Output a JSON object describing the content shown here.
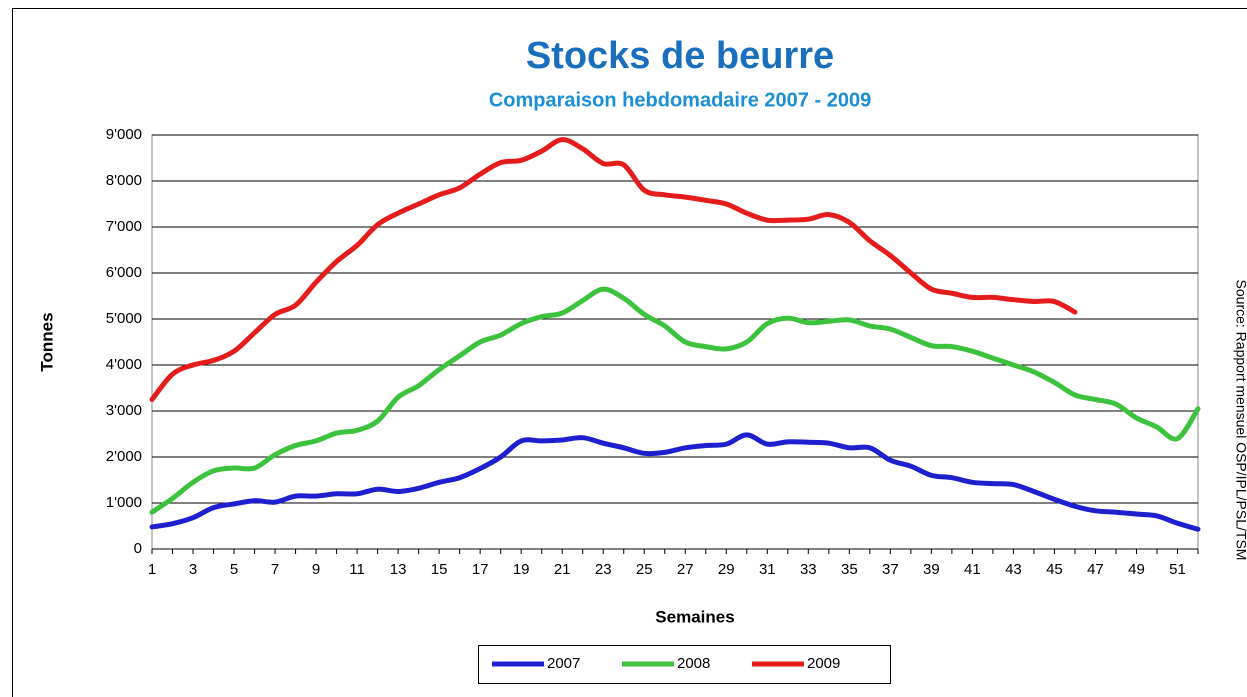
{
  "chart_data": {
    "type": "line",
    "title": "Stocks de beurre",
    "subtitle": "Comparaison hebdomadaire 2007 - 2009",
    "x_label": "Semaines",
    "y_label": "Tonnes",
    "source": "Source: Rapport mensuel OSP/IPL/PSL/TSM",
    "categories": [
      1,
      null,
      3,
      null,
      5,
      null,
      7,
      null,
      9,
      null,
      11,
      null,
      13,
      null,
      15,
      null,
      17,
      null,
      19,
      null,
      21,
      null,
      23,
      null,
      25,
      null,
      27,
      null,
      29,
      null,
      31,
      null,
      33,
      null,
      35,
      null,
      37,
      null,
      39,
      null,
      41,
      null,
      43,
      null,
      45,
      null,
      47,
      null,
      49,
      null,
      51,
      null
    ],
    "ylim": [
      0,
      9000
    ],
    "yticks": [
      0,
      {
        "value": 1000,
        "label": "1'000"
      },
      {
        "value": 2000,
        "label": "2'000"
      },
      {
        "value": 3000,
        "label": "3'000"
      },
      {
        "value": 4000,
        "label": "4'000"
      },
      {
        "value": 5000,
        "label": "5'000"
      },
      {
        "value": 6000,
        "label": "6'000"
      },
      {
        "value": 7000,
        "label": "7'000"
      },
      {
        "value": 8000,
        "label": "8'000"
      },
      {
        "value": 9000,
        "label": "9'000"
      }
    ],
    "grid": true,
    "legend": "bottom",
    "series": [
      {
        "name": "2007",
        "color": "#1f1fcf",
        "values": [
          480,
          550,
          680,
          900,
          980,
          1050,
          1020,
          1150,
          1150,
          1200,
          1200,
          1300,
          1250,
          1320,
          1450,
          1550,
          1750,
          2000,
          2350,
          2350,
          2370,
          2420,
          2300,
          2200,
          2080,
          2100,
          2200,
          2250,
          2280,
          2480,
          2280,
          2330,
          2320,
          2300,
          2200,
          2200,
          1930,
          1800,
          1600,
          1550,
          1450,
          1420,
          1400,
          1250,
          1080,
          930,
          830,
          800,
          760,
          720,
          560,
          430
        ]
      },
      {
        "name": "2008",
        "color": "#3dc23d",
        "values": [
          800,
          1100,
          1450,
          1700,
          1760,
          1760,
          2050,
          2250,
          2350,
          2520,
          2580,
          2780,
          3300,
          3550,
          3900,
          4200,
          4500,
          4650,
          4900,
          5050,
          5130,
          5400,
          5650,
          5450,
          5100,
          4850,
          4500,
          4400,
          4350,
          4500,
          4900,
          5020,
          4920,
          4950,
          4980,
          4850,
          4780,
          4600,
          4420,
          4400,
          4300,
          4150,
          4000,
          3850,
          3620,
          3350,
          3250,
          3150,
          2850,
          2650,
          2400,
          3050
        ]
      },
      {
        "name": "2009",
        "color": "#e41c1c",
        "values": [
          3250,
          3800,
          4000,
          4100,
          4300,
          4700,
          5100,
          5300,
          5800,
          6250,
          6600,
          7050,
          7300,
          7500,
          7700,
          7850,
          8150,
          8400,
          8450,
          8650,
          8900,
          8700,
          8380,
          8350,
          7800,
          7700,
          7650,
          7580,
          7500,
          7300,
          7150,
          7150,
          7170,
          7270,
          7100,
          6700,
          6380,
          6000,
          5650,
          5560,
          5470,
          5470,
          5420,
          5380,
          5380,
          5150,
          null,
          null,
          null,
          null,
          null,
          null
        ]
      }
    ]
  }
}
